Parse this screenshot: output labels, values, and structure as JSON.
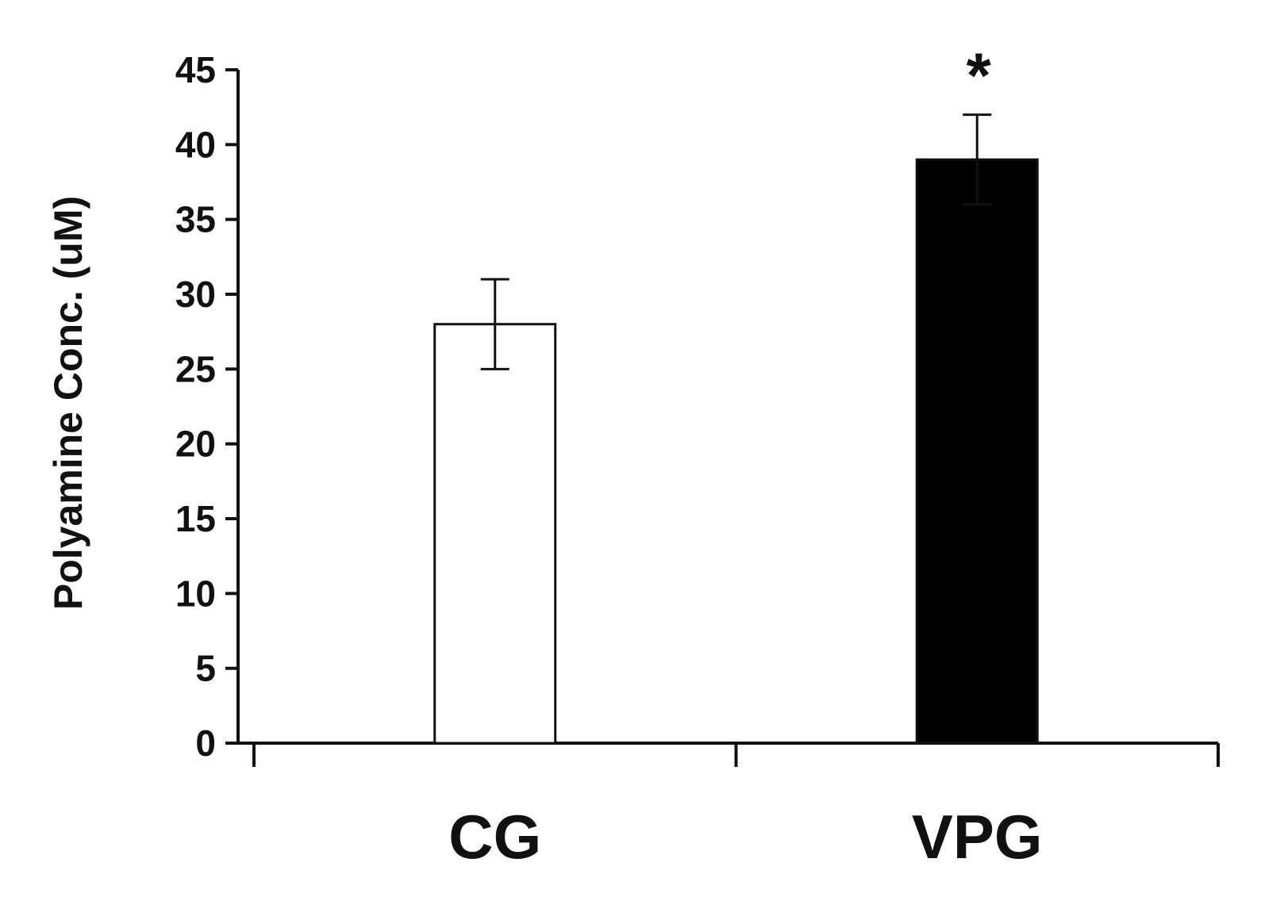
{
  "chart_data": {
    "type": "bar",
    "categories": [
      "CG",
      "VPG"
    ],
    "values": [
      28,
      39
    ],
    "error": [
      3,
      3
    ],
    "bar_colors": [
      "#ffffff",
      "#000000"
    ],
    "annotations": [
      {
        "category": "VPG",
        "text": "*"
      }
    ],
    "title": "",
    "xlabel": "",
    "ylabel": "Polyamine Conc. (uM)",
    "ylim": [
      0,
      45
    ],
    "yticks": [
      0,
      5,
      10,
      15,
      20,
      25,
      30,
      35,
      40,
      45
    ],
    "grid": false,
    "legend": "none"
  }
}
